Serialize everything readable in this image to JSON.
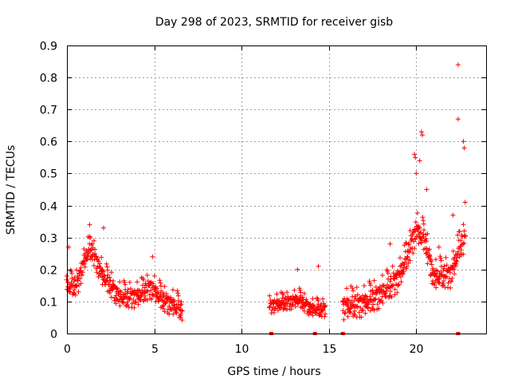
{
  "chart_data": {
    "type": "scatter",
    "title": "Day 298 of 2023, SRMTID for receiver gisb",
    "xlabel": "GPS time / hours",
    "ylabel": "SRMTID / TECUs",
    "xlim": [
      0,
      24
    ],
    "ylim": [
      0,
      0.9
    ],
    "grid": true,
    "marker": "plus",
    "color": "#ff0000",
    "x_ticks": [
      0,
      5,
      10,
      15,
      20
    ],
    "x_tick_labels": [
      "0",
      "5",
      "10",
      "15",
      "20"
    ],
    "y_ticks": [
      0,
      0.1,
      0.2,
      0.3,
      0.4,
      0.5,
      0.6,
      0.7,
      0.8,
      0.9
    ],
    "y_tick_labels": [
      "0",
      "0.1",
      "0.2",
      "0.3",
      "0.4",
      "0.5",
      "0.6",
      "0.7",
      "0.8",
      "0.9"
    ],
    "zero_markers_x": [
      11.7,
      14.2,
      15.8,
      22.4
    ],
    "series": [
      {
        "name": "SRMTID",
        "segments": [
          {
            "t_start": 0.0,
            "t_end": 6.6,
            "step": 0.05,
            "profile": [
              [
                0.0,
                0.15
              ],
              [
                0.6,
                0.16
              ],
              [
                1.1,
                0.25
              ],
              [
                1.4,
                0.27
              ],
              [
                2.0,
                0.19
              ],
              [
                3.0,
                0.12
              ],
              [
                4.0,
                0.12
              ],
              [
                4.8,
                0.15
              ],
              [
                5.5,
                0.11
              ],
              [
                6.6,
                0.08
              ]
            ],
            "spread": 0.05
          },
          {
            "t_start": 11.6,
            "t_end": 14.8,
            "step": 0.05,
            "profile": [
              [
                11.6,
                0.09
              ],
              [
                12.5,
                0.1
              ],
              [
                13.3,
                0.11
              ],
              [
                14.0,
                0.08
              ],
              [
                14.8,
                0.08
              ]
            ],
            "spread": 0.035
          },
          {
            "t_start": 15.8,
            "t_end": 22.8,
            "step": 0.05,
            "profile": [
              [
                15.8,
                0.09
              ],
              [
                17.0,
                0.1
              ],
              [
                18.0,
                0.13
              ],
              [
                19.0,
                0.18
              ],
              [
                19.5,
                0.25
              ],
              [
                20.0,
                0.33
              ],
              [
                20.5,
                0.3
              ],
              [
                21.0,
                0.18
              ],
              [
                21.5,
                0.19
              ],
              [
                22.0,
                0.19
              ],
              [
                22.5,
                0.28
              ],
              [
                22.8,
                0.3
              ]
            ],
            "spread": 0.06
          }
        ],
        "peaks": [
          [
            19.9,
            0.56
          ],
          [
            20.3,
            0.63
          ],
          [
            20.35,
            0.62
          ],
          [
            20.6,
            0.45
          ],
          [
            19.95,
            0.55
          ],
          [
            22.4,
            0.84
          ],
          [
            22.4,
            0.67
          ],
          [
            22.7,
            0.6
          ],
          [
            22.75,
            0.58
          ],
          [
            20.2,
            0.54
          ],
          [
            22.8,
            0.41
          ],
          [
            20.0,
            0.5
          ],
          [
            1.3,
            0.34
          ],
          [
            2.1,
            0.33
          ],
          [
            4.9,
            0.24
          ],
          [
            13.2,
            0.2
          ],
          [
            14.4,
            0.21
          ],
          [
            18.5,
            0.28
          ],
          [
            21.3,
            0.27
          ],
          [
            22.1,
            0.37
          ],
          [
            0.1,
            0.27
          ]
        ]
      }
    ]
  }
}
